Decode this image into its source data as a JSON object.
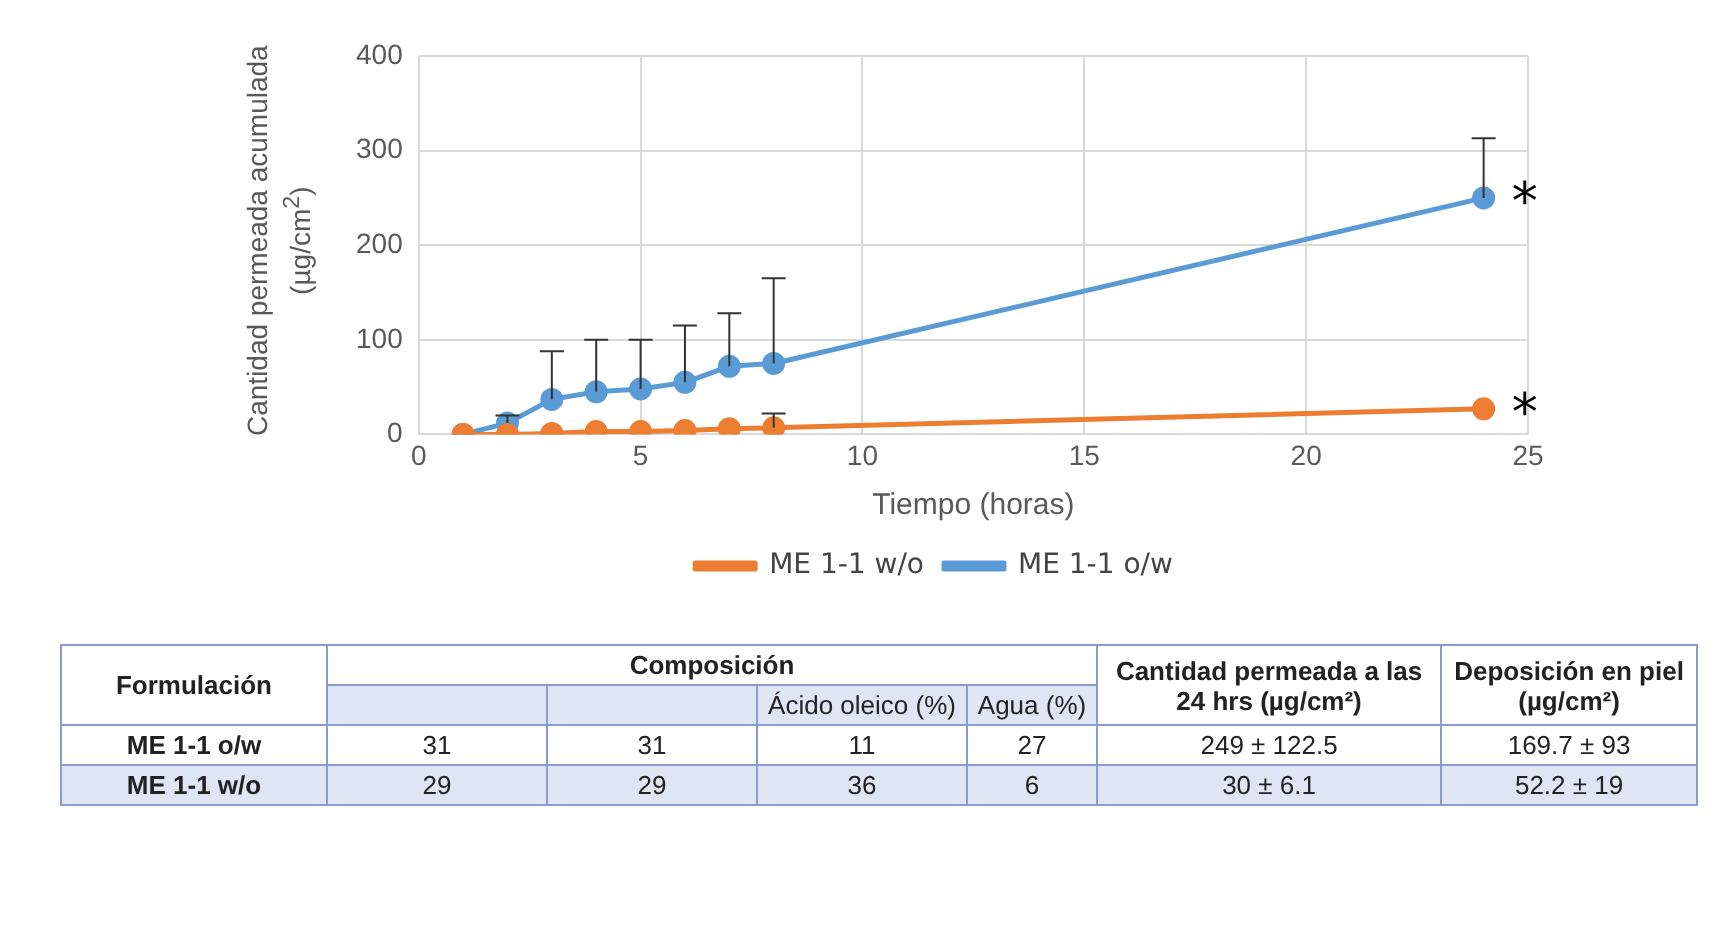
{
  "chart_data": {
    "type": "line",
    "xlabel": "Tiempo (horas)",
    "ylabel": "Cantidad permeada acumulada (µg/cm$^{2}$)",
    "x": [
      1,
      2,
      3,
      4,
      5,
      6,
      7,
      8,
      24
    ],
    "series": [
      {
        "name": "ME 1-1 w/o",
        "color": "#ed7d31",
        "values": [
          0,
          0,
          1,
          3,
          3,
          4,
          6,
          7,
          27
        ],
        "errors": [
          null,
          null,
          null,
          null,
          null,
          null,
          null,
          [
            7,
            22
          ],
          null
        ]
      },
      {
        "name": "ME 1-1 o/w",
        "color": "#5b9bd5",
        "values": [
          0,
          12,
          37,
          45,
          48,
          55,
          72,
          75,
          250
        ],
        "errors": [
          null,
          [
            12,
            20
          ],
          [
            37,
            88
          ],
          [
            45,
            100
          ],
          [
            48,
            100
          ],
          [
            55,
            115
          ],
          [
            72,
            128
          ],
          [
            75,
            165
          ],
          [
            250,
            313
          ]
        ]
      }
    ],
    "xlim": [
      0,
      25
    ],
    "xticks": [
      0,
      5,
      10,
      15,
      20,
      25
    ],
    "ylim": [
      0,
      400
    ],
    "yticks": [
      0,
      100,
      200,
      300,
      400
    ],
    "grid": true,
    "legend": "bottom",
    "marker": "circle",
    "line_style": "solid",
    "annotations": [
      {
        "text": "*",
        "x": 24,
        "y": 250
      },
      {
        "text": "*",
        "x": 24,
        "y": 27
      },
      "Formulación",
      "Composición",
      "Ácido oleico (%)",
      "Agua (%)",
      "Cantidad permeada a las 24 hrs (µg/cm²)",
      "Deposición en piel (µg/cm²)",
      "ME 1-1 o/w",
      "31",
      "31",
      "11",
      "27",
      "249 ± 122.5",
      "169.7 ± 93",
      "ME 1-1 w/o",
      "29",
      "29",
      "36",
      "6",
      "30 ± 6.1",
      "52.2 ± 19"
    ]
  }
}
